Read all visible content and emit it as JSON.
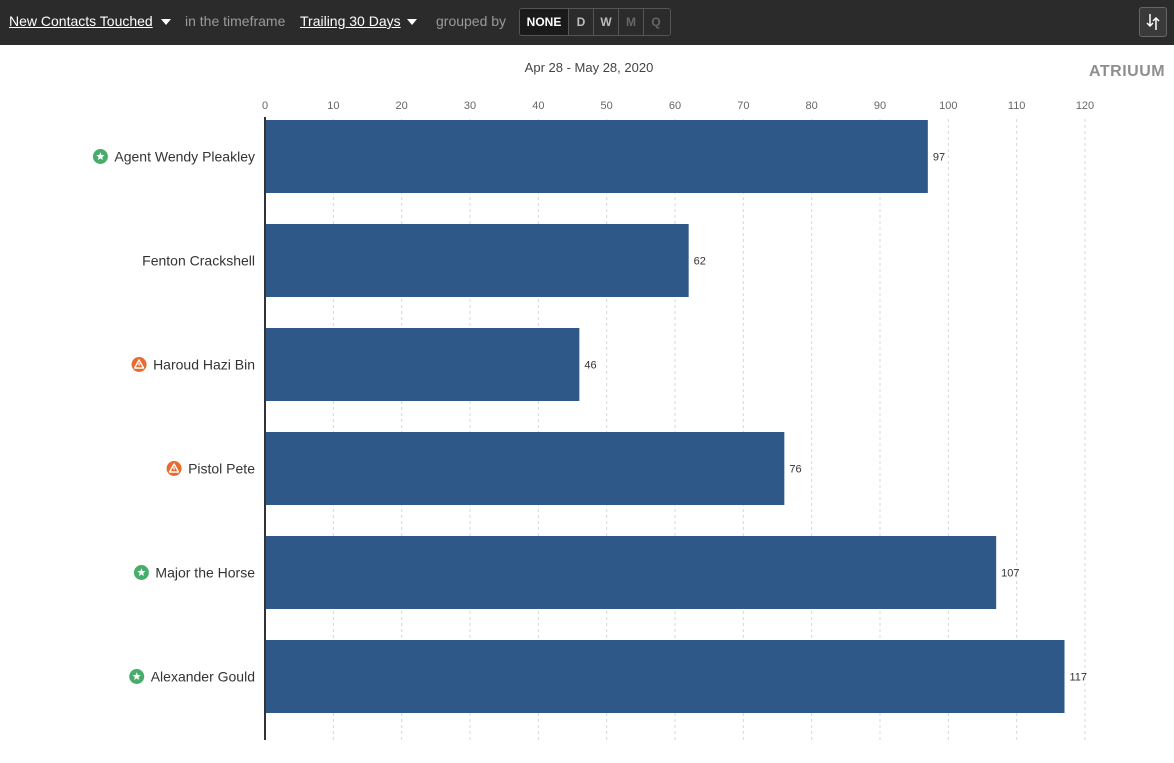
{
  "toolbar": {
    "metric_label": "New Contacts Touched",
    "timeframe_prefix": "in the timeframe",
    "timeframe_label": "Trailing 30 Days",
    "grouped_prefix": "grouped by",
    "group_options": [
      "NONE",
      "D",
      "W",
      "M",
      "Q"
    ],
    "group_selected": "NONE",
    "export_icon": "sort-export-icon"
  },
  "header": {
    "date_range": "Apr 28 - May 28, 2020",
    "logo_text": "ATRIUUM"
  },
  "colors": {
    "bar": "#2e5888",
    "badge_star": "#48ad6b",
    "badge_warning": "#e86a2f"
  },
  "chart_data": {
    "type": "bar",
    "orientation": "horizontal",
    "categories": [
      "Agent Wendy Pleakley",
      "Fenton Crackshell",
      "Haroud Hazi Bin",
      "Pistol Pete",
      "Major the Horse",
      "Alexander Gould"
    ],
    "badges": [
      "star",
      "",
      "warning",
      "warning",
      "star",
      "star"
    ],
    "values": [
      97,
      62,
      46,
      76,
      107,
      117
    ],
    "xlim": [
      0,
      120
    ],
    "xticks": [
      0,
      10,
      20,
      30,
      40,
      50,
      60,
      70,
      80,
      90,
      100,
      110,
      120
    ],
    "grid": true,
    "data_labels": true
  }
}
